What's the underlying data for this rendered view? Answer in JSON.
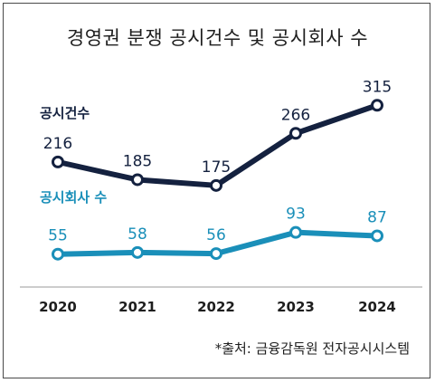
{
  "chart_data": {
    "type": "line",
    "title": "경영권 분쟁 공시건수 및 공시회사 수",
    "categories": [
      "2020",
      "2021",
      "2022",
      "2023",
      "2024"
    ],
    "series": [
      {
        "name": "공시건수",
        "values": [
          216,
          185,
          175,
          266,
          315
        ],
        "color": "#14213f"
      },
      {
        "name": "공시회사 수",
        "values": [
          55,
          58,
          56,
          93,
          87
        ],
        "color": "#1a8fb9"
      }
    ],
    "grid": false,
    "legend": "inline-left"
  },
  "source": "*출처: 금융감독원 전자공시시스템"
}
